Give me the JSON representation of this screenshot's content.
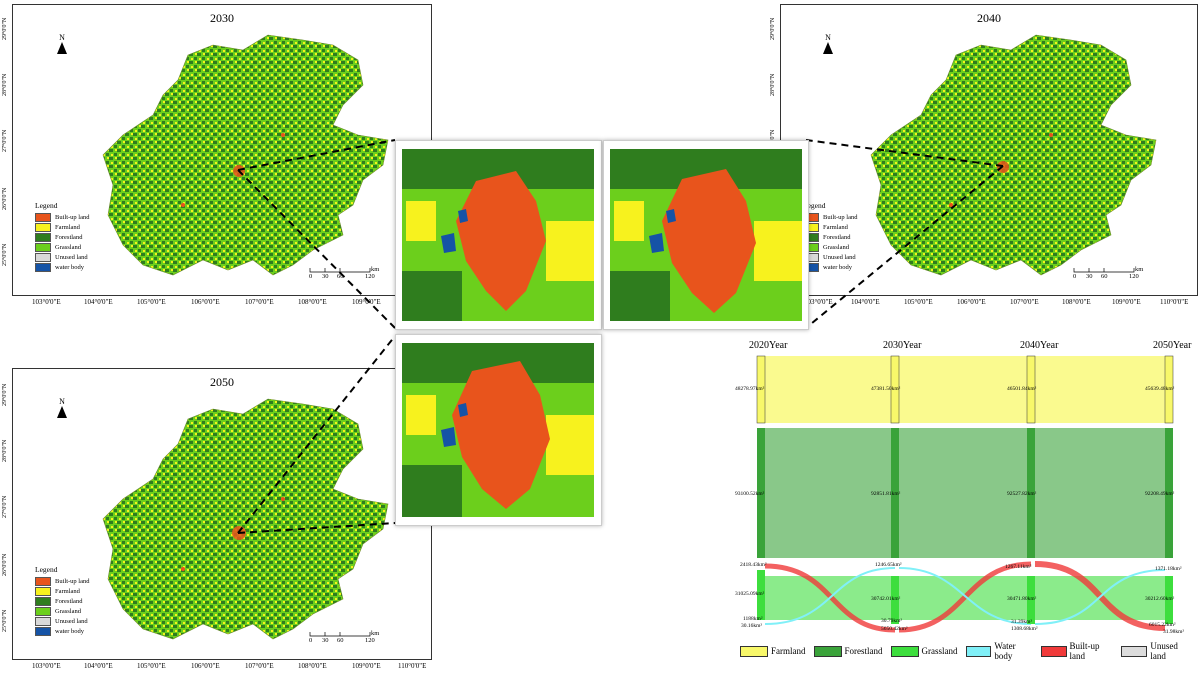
{
  "colors": {
    "builtup": "#e8541c",
    "farmland": "#f7f21e",
    "forestland": "#2f7d1e",
    "grassland": "#6ccf1c",
    "unused": "#d9d9d9",
    "water": "#1553a6",
    "sk_farmland": "#f8f86a",
    "sk_forest": "#3aa33a",
    "sk_grass": "#3dde3d",
    "sk_water": "#80f0f8",
    "sk_built": "#f03a3a",
    "sk_unused": "#dcdcdc"
  },
  "maps": [
    {
      "title": "2030",
      "id": "map-2030"
    },
    {
      "title": "2040",
      "id": "map-2040"
    },
    {
      "title": "2050",
      "id": "map-2050"
    }
  ],
  "legend": {
    "title": "Legend",
    "items": [
      "Built-up land",
      "Farmland",
      "Forestland",
      "Grassland",
      "Unused land",
      "water body"
    ]
  },
  "north": "N",
  "scale": {
    "ticks": [
      "0",
      "30",
      "60",
      "120"
    ],
    "unit": "km"
  },
  "lat_labels": [
    "29°0'0\"N",
    "28°0'0\"N",
    "27°0'0\"N",
    "26°0'0\"N",
    "25°0'0\"N"
  ],
  "lon_labels": [
    "103°0'0\"E",
    "104°0'0\"E",
    "105°0'0\"E",
    "106°0'0\"E",
    "107°0'0\"E",
    "108°0'0\"E",
    "109°0'0\"E",
    "110°0'0\"E"
  ],
  "sankey": {
    "years": [
      "2020Year",
      "2030Year",
      "2040Year",
      "2050Year"
    ],
    "values": {
      "farmland": [
        "48278.97km²",
        "47381.50km²",
        "46501.84km²",
        "45639.48km²"
      ],
      "forest": [
        "93100.52km²",
        "92851.81km²",
        "92527.82km²",
        "92208.49km²"
      ],
      "water": [
        "2418.43km²",
        "1246.65km²",
        "1267.11km²",
        "1371.18km²"
      ],
      "grass": [
        "31025.09km²",
        "30742.01km²",
        "30471.80km²",
        "30212.60km²"
      ],
      "built": [
        "1188km²",
        "5650.42km²",
        "1308.68km²",
        "6015.22km²"
      ],
      "unused": [
        "30.16km²",
        "30.79km²",
        "31.39km²",
        "31.98km²"
      ]
    },
    "legend": [
      "Farmland",
      "Forestland",
      "Grassland",
      "Water body",
      "Built-up land",
      "Unused land"
    ]
  }
}
